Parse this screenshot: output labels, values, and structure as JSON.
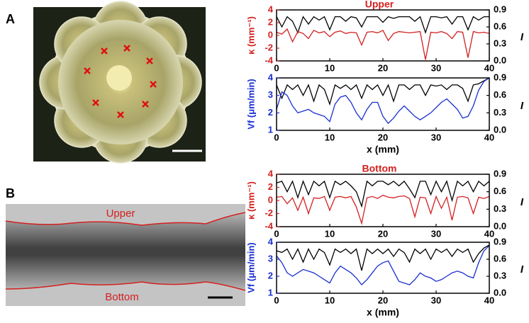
{
  "panels": {
    "a_label": "A",
    "b_label": "B",
    "b_upper": "Upper",
    "b_bottom": "Bottom"
  },
  "chart_data": [
    {
      "type": "line",
      "title": "Upper",
      "ylabel": "κ (mm⁻¹)",
      "y2label": "I",
      "x": [
        0,
        1,
        2,
        3,
        4,
        5,
        6,
        7,
        8,
        9,
        10,
        11,
        12,
        13,
        14,
        15,
        16,
        17,
        18,
        19,
        20,
        21,
        22,
        23,
        24,
        25,
        26,
        27,
        28,
        29,
        30,
        31,
        32,
        33,
        34,
        35,
        36,
        37,
        38,
        39,
        40
      ],
      "xlim": [
        0,
        40
      ],
      "xticks": [
        0,
        10,
        20,
        30,
        40
      ],
      "ylim": [
        -4,
        4
      ],
      "yticks": [
        -4,
        -2,
        0,
        2,
        4
      ],
      "y2lim": [
        0,
        0.9
      ],
      "y2ticks": [
        {
          "value": 0,
          "label": "0.0"
        },
        0.3,
        0.6,
        0.9
      ],
      "series": [
        {
          "color": "#000000",
          "axis": "y2",
          "values": [
            0.78,
            0.6,
            0.78,
            0.7,
            0.5,
            0.78,
            0.65,
            0.78,
            0.72,
            0.78,
            0.55,
            0.78,
            0.78,
            0.7,
            0.78,
            0.76,
            0.6,
            0.78,
            0.78,
            0.78,
            0.68,
            0.78,
            0.75,
            0.78,
            0.78,
            0.78,
            0.7,
            0.78,
            0.5,
            0.78,
            0.78,
            0.76,
            0.78,
            0.65,
            0.78,
            0.78,
            0.55,
            0.78,
            0.72,
            0.78,
            0.78
          ]
        },
        {
          "color": "#d42020",
          "axis": "y",
          "values": [
            0.5,
            0.2,
            1.0,
            -1.0,
            0.6,
            0.3,
            -0.5,
            0.8,
            0.4,
            0.6,
            -0.2,
            0.5,
            0.7,
            0.3,
            0.5,
            0.4,
            -1.5,
            0.5,
            0.6,
            0.4,
            0.8,
            -0.8,
            0.3,
            0.6,
            0.5,
            0.4,
            0.5,
            0.6,
            -3.8,
            0.5,
            0.4,
            0.6,
            0.3,
            -0.5,
            0.6,
            0.5,
            -3.5,
            0.6,
            0.4,
            0.5,
            0.3
          ]
        }
      ]
    },
    {
      "type": "line",
      "ylabel": "Vf (μm/min)",
      "y2label": "I",
      "xlabel": "x (mm)",
      "x": [
        0,
        1,
        2,
        3,
        4,
        5,
        6,
        7,
        8,
        9,
        10,
        11,
        12,
        13,
        14,
        15,
        16,
        17,
        18,
        19,
        20,
        21,
        22,
        23,
        24,
        25,
        26,
        27,
        28,
        29,
        30,
        31,
        32,
        33,
        34,
        35,
        36,
        37,
        38,
        39,
        40
      ],
      "xlim": [
        0,
        40
      ],
      "xticks": [
        0,
        10,
        20,
        30,
        40
      ],
      "ylim": [
        1,
        4
      ],
      "yticks": [
        1,
        2,
        3,
        4
      ],
      "y2lim": [
        0,
        0.9
      ],
      "y2ticks": [
        {
          "value": 0,
          "label": "0.0"
        },
        0.3,
        0.6,
        0.9
      ],
      "series": [
        {
          "color": "#000000",
          "axis": "y2",
          "values": [
            0.78,
            0.55,
            0.78,
            0.7,
            0.78,
            0.6,
            0.78,
            0.5,
            0.78,
            0.7,
            0.45,
            0.78,
            0.72,
            0.78,
            0.7,
            0.78,
            0.55,
            0.78,
            0.7,
            0.78,
            0.6,
            0.78,
            0.5,
            0.78,
            0.78,
            0.7,
            0.78,
            0.78,
            0.6,
            0.78,
            0.76,
            0.78,
            0.7,
            0.78,
            0.78,
            0.72,
            0.5,
            0.78,
            0.8,
            0.85,
            0.9
          ]
        },
        {
          "color": "#1a2fd0",
          "axis": "y",
          "values": [
            2.2,
            3.2,
            3.0,
            2.4,
            2.0,
            2.1,
            2.2,
            2.0,
            1.9,
            1.8,
            1.5,
            2.5,
            2.9,
            3.0,
            2.6,
            2.0,
            1.6,
            2.2,
            2.6,
            2.6,
            1.8,
            1.4,
            1.7,
            2.1,
            2.4,
            2.1,
            1.8,
            1.6,
            1.8,
            2.0,
            2.3,
            2.6,
            2.8,
            2.5,
            2.2,
            1.7,
            1.8,
            2.4,
            3.3,
            3.8,
            4.0
          ]
        }
      ]
    },
    {
      "type": "line",
      "title": "Bottom",
      "ylabel": "κ (mm⁻¹)",
      "y2label": "I",
      "x": [
        0,
        1,
        2,
        3,
        4,
        5,
        6,
        7,
        8,
        9,
        10,
        11,
        12,
        13,
        14,
        15,
        16,
        17,
        18,
        19,
        20,
        21,
        22,
        23,
        24,
        25,
        26,
        27,
        28,
        29,
        30,
        31,
        32,
        33,
        34,
        35,
        36,
        37,
        38,
        39,
        40
      ],
      "xlim": [
        0,
        40
      ],
      "xticks": [
        0,
        10,
        20,
        30,
        40
      ],
      "ylim": [
        -4,
        4
      ],
      "yticks": [
        -4,
        -2,
        0,
        2,
        4
      ],
      "y2lim": [
        0,
        0.9
      ],
      "y2ticks": [
        {
          "value": 0,
          "label": "0.0"
        },
        0.3,
        0.6,
        0.9
      ],
      "series": [
        {
          "color": "#000000",
          "axis": "y2",
          "values": [
            0.75,
            0.78,
            0.6,
            0.78,
            0.5,
            0.78,
            0.55,
            0.78,
            0.7,
            0.78,
            0.5,
            0.78,
            0.72,
            0.78,
            0.7,
            0.6,
            0.35,
            0.78,
            0.7,
            0.78,
            0.78,
            0.72,
            0.78,
            0.7,
            0.78,
            0.65,
            0.5,
            0.78,
            0.78,
            0.55,
            0.78,
            0.6,
            0.78,
            0.45,
            0.78,
            0.7,
            0.78,
            0.6,
            0.78,
            0.7,
            0.78
          ]
        },
        {
          "color": "#d42020",
          "axis": "y",
          "values": [
            0.5,
            0.6,
            -0.5,
            0.4,
            -1.5,
            0.5,
            -2.0,
            0.4,
            0.3,
            0.6,
            -1.5,
            0.5,
            0.6,
            0.4,
            0.6,
            -1.0,
            -3.5,
            0.4,
            0.6,
            0.3,
            0.8,
            0.5,
            0.4,
            0.6,
            0.7,
            0.3,
            -2.5,
            0.5,
            0.4,
            -2.0,
            0.6,
            -1.2,
            0.5,
            -3.0,
            0.5,
            0.6,
            0.4,
            -2.0,
            0.5,
            0.3,
            0.6
          ]
        }
      ]
    },
    {
      "type": "line",
      "ylabel": "Vf (μm/min)",
      "y2label": "I",
      "xlabel": "x (mm)",
      "x": [
        0,
        1,
        2,
        3,
        4,
        5,
        6,
        7,
        8,
        9,
        10,
        11,
        12,
        13,
        14,
        15,
        16,
        17,
        18,
        19,
        20,
        21,
        22,
        23,
        24,
        25,
        26,
        27,
        28,
        29,
        30,
        31,
        32,
        33,
        34,
        35,
        36,
        37,
        38,
        39,
        40
      ],
      "xlim": [
        0,
        40
      ],
      "xticks": [
        0,
        10,
        20,
        30,
        40
      ],
      "ylim": [
        1,
        4
      ],
      "yticks": [
        1,
        2,
        3,
        4
      ],
      "y2lim": [
        0,
        0.9
      ],
      "y2ticks": [
        {
          "value": 0,
          "label": "0.0"
        },
        0.3,
        0.6,
        0.9
      ],
      "series": [
        {
          "color": "#000000",
          "axis": "y2",
          "values": [
            0.75,
            0.72,
            0.78,
            0.6,
            0.78,
            0.55,
            0.78,
            0.6,
            0.78,
            0.72,
            0.5,
            0.78,
            0.72,
            0.78,
            0.7,
            0.78,
            0.4,
            0.78,
            0.7,
            0.78,
            0.7,
            0.78,
            0.65,
            0.78,
            0.72,
            0.55,
            0.78,
            0.7,
            0.78,
            0.6,
            0.78,
            0.72,
            0.78,
            0.65,
            0.78,
            0.72,
            0.78,
            0.55,
            0.7,
            0.8,
            0.85
          ]
        },
        {
          "color": "#1a2fd0",
          "axis": "y",
          "values": [
            3.2,
            2.8,
            2.2,
            2.0,
            2.2,
            2.4,
            2.3,
            2.2,
            2.0,
            1.8,
            1.6,
            2.2,
            2.6,
            2.4,
            2.2,
            1.9,
            1.5,
            1.8,
            2.2,
            2.6,
            2.8,
            2.9,
            2.3,
            1.7,
            1.6,
            1.5,
            1.8,
            2.2,
            2.0,
            1.9,
            1.7,
            1.8,
            2.0,
            2.2,
            2.3,
            2.2,
            2.0,
            1.9,
            2.8,
            3.5,
            3.8
          ]
        }
      ]
    }
  ]
}
